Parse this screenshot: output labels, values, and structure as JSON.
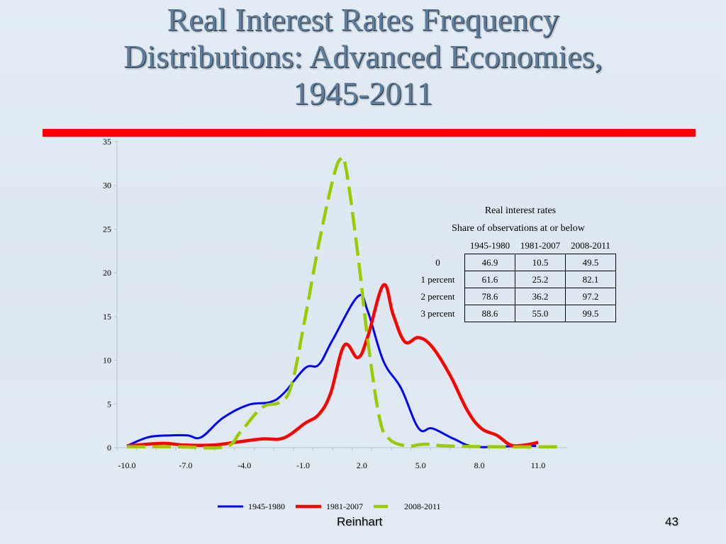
{
  "slide": {
    "title_lines": [
      "Real Interest Rates Frequency",
      "Distributions: Advanced Economies,",
      "1945-2011"
    ],
    "footer_author": "Reinhart",
    "page_number": "43",
    "rule_color": "#ff0000"
  },
  "table": {
    "caption_line1": "Real interest rates",
    "caption_line2": "Share of observations at or below",
    "columns": [
      "1945-1980",
      "1981-2007",
      "2008-2011"
    ],
    "rows": [
      {
        "label": "0",
        "values": [
          "46.9",
          "10.5",
          "49.5"
        ]
      },
      {
        "label": "1 percent",
        "values": [
          "61.6",
          "25.2",
          "82.1"
        ]
      },
      {
        "label": "2 percent",
        "values": [
          "78.6",
          "36.2",
          "97.2"
        ]
      },
      {
        "label": "3 percent",
        "values": [
          "88.6",
          "55.0",
          "99.5"
        ]
      }
    ]
  },
  "chart_data": {
    "type": "line",
    "title": "Real Interest Rates Frequency Distributions: Advanced Economies, 1945-2011",
    "xlabel": "",
    "ylabel": "",
    "xlim": [
      -10.5,
      12.5
    ],
    "ylim": [
      0,
      35
    ],
    "x_ticks": [
      -10.0,
      -7.0,
      -4.0,
      -1.0,
      2.0,
      5.0,
      8.0,
      11.0
    ],
    "x_tick_labels": [
      "-10.0",
      "-7.0",
      "-4.0",
      "-1.0",
      "2.0",
      "5.0",
      "8.0",
      "11.0"
    ],
    "y_ticks": [
      0,
      5,
      10,
      15,
      20,
      25,
      30,
      35
    ],
    "y_tick_labels": [
      "0",
      "5",
      "10",
      "15",
      "20",
      "25",
      "30",
      "35"
    ],
    "grid": false,
    "legend_position": "bottom",
    "series": [
      {
        "name": "1945-1980",
        "color": "#0000ff",
        "style": "solid",
        "points": [
          [
            -10,
            0.2
          ],
          [
            -8.9,
            1.2
          ],
          [
            -7.8,
            1.4
          ],
          [
            -6.9,
            1.4
          ],
          [
            -6.2,
            1.2
          ],
          [
            -5.1,
            3.4
          ],
          [
            -3.8,
            4.9
          ],
          [
            -2.7,
            5.2
          ],
          [
            -2.0,
            6.2
          ],
          [
            -0.9,
            9.1
          ],
          [
            -0.2,
            9.5
          ],
          [
            0.5,
            12.3
          ],
          [
            1.8,
            17.3
          ],
          [
            2.3,
            15.6
          ],
          [
            3.1,
            9.9
          ],
          [
            4.0,
            6.8
          ],
          [
            4.9,
            2.2
          ],
          [
            5.6,
            2.2
          ],
          [
            6.7,
            1.0
          ],
          [
            7.8,
            0.1
          ],
          [
            10.0,
            0.2
          ],
          [
            10.9,
            0.2
          ]
        ]
      },
      {
        "name": "1981-2007",
        "color": "#ff0000",
        "style": "solid",
        "points": [
          [
            -10,
            0.2
          ],
          [
            -8.2,
            0.5
          ],
          [
            -7.1,
            0.3
          ],
          [
            -5.6,
            0.3
          ],
          [
            -4.5,
            0.6
          ],
          [
            -3.1,
            1.0
          ],
          [
            -2.0,
            1.1
          ],
          [
            -0.9,
            2.8
          ],
          [
            -0.2,
            3.8
          ],
          [
            0.4,
            6.2
          ],
          [
            1.1,
            11.7
          ],
          [
            1.8,
            10.3
          ],
          [
            2.3,
            12.7
          ],
          [
            3.1,
            18.6
          ],
          [
            3.6,
            15.2
          ],
          [
            4.2,
            12.1
          ],
          [
            4.9,
            12.6
          ],
          [
            5.6,
            11.5
          ],
          [
            6.5,
            8.3
          ],
          [
            7.4,
            4.2
          ],
          [
            8.1,
            2.2
          ],
          [
            8.9,
            1.4
          ],
          [
            9.6,
            0.3
          ],
          [
            10.3,
            0.3
          ],
          [
            11.0,
            0.6
          ]
        ]
      },
      {
        "name": "2008-2011",
        "color": "#99cc00",
        "style": "dashed",
        "points": [
          [
            -10,
            0.1
          ],
          [
            -7.4,
            0.1
          ],
          [
            -5.0,
            0.1
          ],
          [
            -4.2,
            1.8
          ],
          [
            -3.1,
            4.6
          ],
          [
            -2.2,
            5.2
          ],
          [
            -1.6,
            7.1
          ],
          [
            -0.9,
            14.8
          ],
          [
            -0.2,
            23.3
          ],
          [
            0.5,
            30.5
          ],
          [
            0.9,
            33.0
          ],
          [
            1.2,
            31.8
          ],
          [
            1.8,
            22.0
          ],
          [
            2.3,
            12.3
          ],
          [
            2.9,
            3.4
          ],
          [
            3.4,
            1.0
          ],
          [
            4.3,
            0.2
          ],
          [
            5.2,
            0.4
          ],
          [
            6.3,
            0.2
          ],
          [
            8.9,
            0.1
          ],
          [
            12.0,
            0.1
          ]
        ]
      }
    ]
  }
}
